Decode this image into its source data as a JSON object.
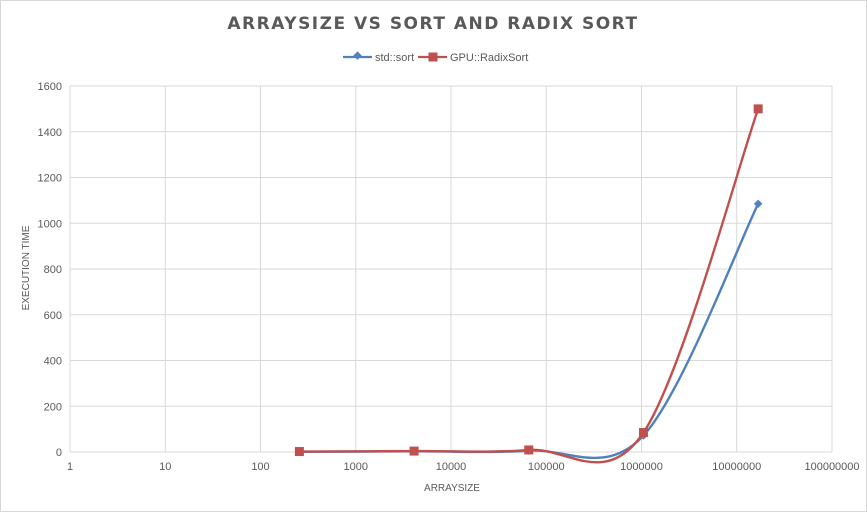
{
  "chart_data": {
    "type": "line",
    "title": "ARRAYSIZE VS SORT AND RADIX SORT",
    "xlabel": "ARRAYSIZE",
    "ylabel": "EXECUTION TIME",
    "xscale": "log",
    "xlim": [
      1,
      100000000
    ],
    "ylim": [
      0,
      1600
    ],
    "x_ticks": [
      "1",
      "10",
      "100",
      "1000",
      "10000",
      "100000",
      "1000000",
      "10000000",
      "100000000"
    ],
    "y_ticks": [
      "0",
      "200",
      "400",
      "600",
      "800",
      "1000",
      "1200",
      "1400",
      "1600"
    ],
    "grid": true,
    "legend_position": "top",
    "series": [
      {
        "name": "std::sort",
        "color": "#4f81bd",
        "marker": "diamond",
        "x": [
          256,
          4096,
          65536,
          1048576,
          16777216
        ],
        "y": [
          1,
          3,
          6,
          72,
          1085
        ]
      },
      {
        "name": "GPU::RadixSort",
        "color": "#c0504d",
        "marker": "square",
        "x": [
          256,
          4096,
          65536,
          1048576,
          16777216
        ],
        "y": [
          2,
          4,
          9,
          85,
          1500
        ]
      }
    ]
  }
}
